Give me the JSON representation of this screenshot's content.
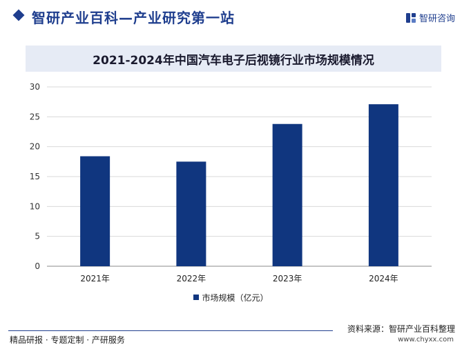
{
  "header": {
    "site_title": "智研产业百科—产业研究第一站",
    "brand_name": "智研咨询"
  },
  "colors": {
    "accent": "#1f3e8e",
    "bar": "#10367f",
    "title_band": "#e6ebf5"
  },
  "chart_data": {
    "type": "bar",
    "title": "2021-2024年中国汽车电子后视镜行业市场规模情况",
    "categories": [
      "2021年",
      "2022年",
      "2023年",
      "2024年"
    ],
    "series": [
      {
        "name": "市场规模（亿元）",
        "values": [
          18.4,
          17.5,
          23.8,
          27.1
        ]
      }
    ],
    "ylim": [
      0,
      30
    ],
    "yticks": [
      0,
      5,
      10,
      15,
      20,
      25,
      30
    ],
    "grid": true,
    "legend_position": "bottom"
  },
  "footer": {
    "source": "资料来源：智研产业百科整理",
    "url": "www.chyxx.com",
    "tagline": "精品研报 · 专题定制 · 产研服务"
  }
}
